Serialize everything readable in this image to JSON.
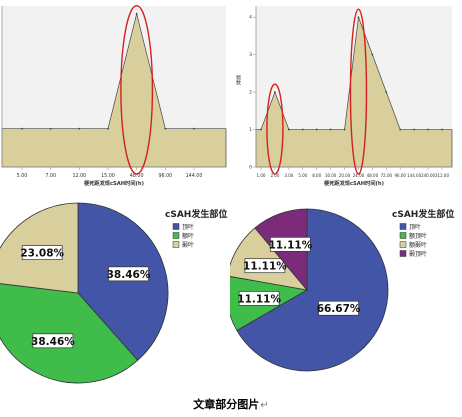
{
  "chart_data": [
    {
      "type": "area",
      "title": "",
      "xlabel": "梗死距发现cSAH时间(h)",
      "ylabel": "",
      "categories": [
        "5.00",
        "7.00",
        "12.00",
        "15.00",
        "48.00",
        "96.00",
        "144.00"
      ],
      "values": [
        1,
        1,
        1,
        1,
        4,
        1,
        1
      ],
      "ylim": [
        0,
        4.2
      ],
      "grid": false,
      "fill_color": "#d8cf9d",
      "annotations": [
        {
          "shape": "ellipse",
          "color": "#d42020",
          "around_category": "48.00"
        }
      ]
    },
    {
      "type": "area",
      "title": "",
      "xlabel": "梗死距发现cSAH时间(h)",
      "ylabel": "频数",
      "categories": [
        "1.00",
        "2.00",
        "3.00",
        "5.00",
        "8.00",
        "16.00",
        "20.00",
        "24.00",
        "48.00",
        "72.00",
        "96.00",
        "144.00",
        "240.00",
        "312.00"
      ],
      "values": [
        1,
        2,
        1,
        1,
        1,
        1,
        1,
        4,
        3,
        2,
        1,
        1,
        1,
        1
      ],
      "yticks": [
        "0",
        "1",
        "2",
        "3",
        "4"
      ],
      "ylim": [
        0,
        4.3
      ],
      "grid": false,
      "fill_color": "#d8cf9d",
      "annotations": [
        {
          "shape": "ellipse",
          "color": "#d42020",
          "around_category": "2.00"
        },
        {
          "shape": "ellipse",
          "color": "#d42020",
          "around_category": "24.00"
        }
      ]
    },
    {
      "type": "pie",
      "legend_title": "cSAH发生部位",
      "legend_placement": "right",
      "slices": [
        {
          "name": "顶叶",
          "value": 38.46,
          "label": "38.46%",
          "color": "#4255a7"
        },
        {
          "name": "额叶",
          "value": 38.46,
          "label": "38.46%",
          "color": "#3fbc4a"
        },
        {
          "name": "颞叶",
          "value": 23.08,
          "label": "23.08%",
          "color": "#d8cf9d"
        }
      ]
    },
    {
      "type": "pie",
      "legend_title": "cSAH发生部位",
      "legend_placement": "right",
      "slices": [
        {
          "name": "顶叶",
          "value": 66.67,
          "label": "66.67%",
          "color": "#4255a7"
        },
        {
          "name": "额顶叶",
          "value": 11.11,
          "label": "11.11%",
          "color": "#3fbc4a"
        },
        {
          "name": "额颞叶",
          "value": 11.11,
          "label": "11.11%",
          "color": "#d8cf9d"
        },
        {
          "name": "颞顶叶",
          "value": 11.11,
          "label": "11.11%",
          "color": "#7c2a7a"
        }
      ]
    }
  ],
  "caption": "文章部分图片",
  "caption_mark": "↵"
}
